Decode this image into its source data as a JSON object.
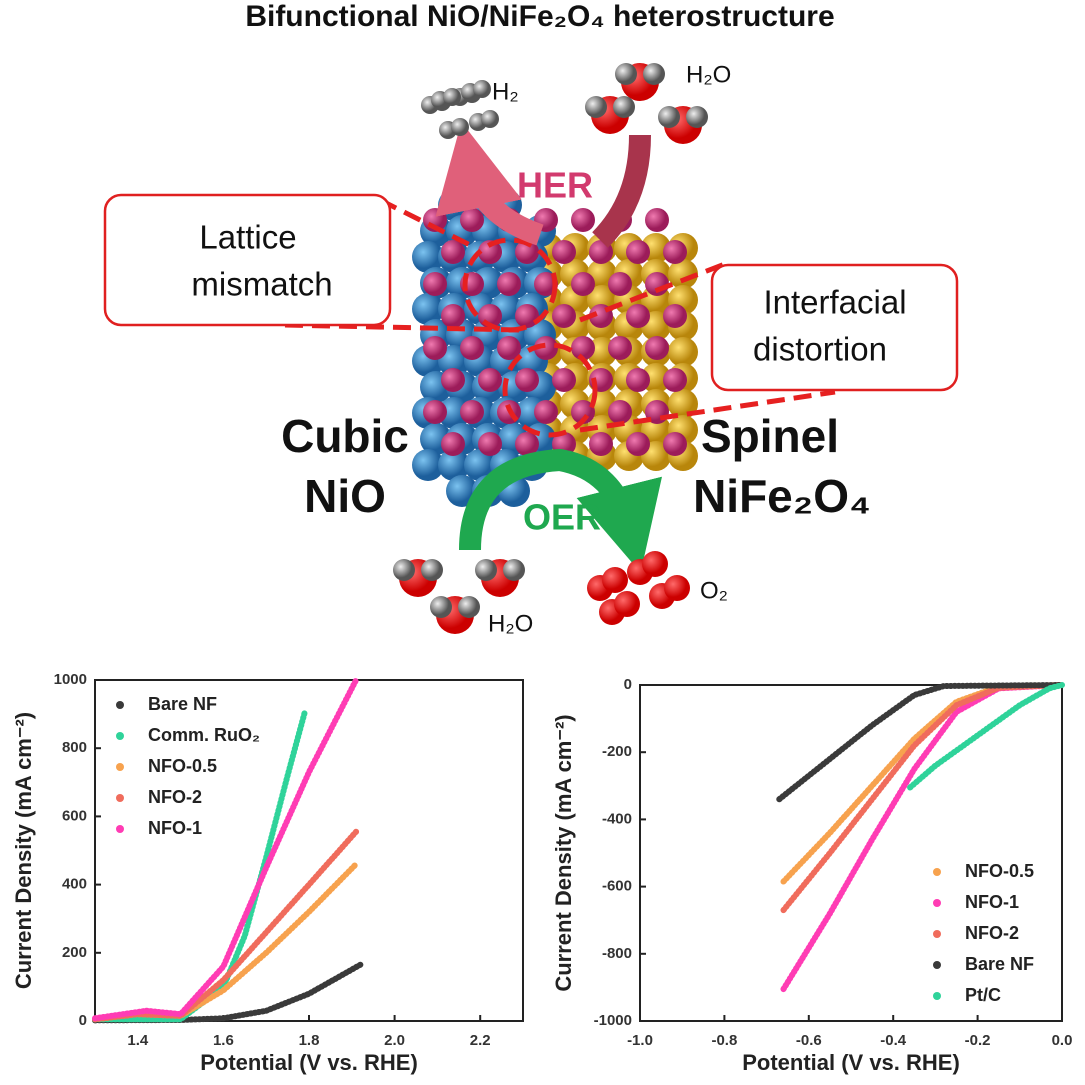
{
  "diagram": {
    "title": "Bifunctional NiO/NiFe₂O₄ heterostructure",
    "her": "HER",
    "oer": "OER",
    "lattice_mismatch": [
      "Lattice",
      "mismatch"
    ],
    "interfacial_distortion": [
      "Interfacial",
      "distortion"
    ],
    "cubic_nio": [
      "Cubic",
      "NiO"
    ],
    "spinel_nife2o4": [
      "Spinel",
      "NiFe₂O₄"
    ],
    "molecules": [
      "H₂",
      "H₂O",
      "H₂O",
      "O₂"
    ]
  },
  "chart_data": [
    {
      "type": "line",
      "xlabel": "Potential (V vs. RHE)",
      "ylabel": "Current Density (mA cm⁻²)",
      "xlim": [
        1.3,
        2.3
      ],
      "xticks": [
        1.4,
        1.6,
        1.8,
        {
          "value": 2,
          "label": "2.0"
        },
        2.2
      ],
      "ylim": [
        0,
        1000
      ],
      "yticks": [
        0,
        200,
        400,
        600,
        800,
        1000
      ],
      "legend": "upper left",
      "series": [
        {
          "name": "Bare NF",
          "color": "#3a3a3a",
          "x": [
            1.3,
            1.5,
            1.6,
            1.7,
            1.8,
            1.92
          ],
          "values": [
            2,
            3,
            8,
            30,
            80,
            165
          ]
        },
        {
          "name": "Comm. RuO₂",
          "color": "#2fd39a",
          "x": [
            1.3,
            1.5,
            1.6,
            1.65,
            1.7,
            1.75,
            1.79
          ],
          "values": [
            5,
            5,
            100,
            250,
            480,
            720,
            905
          ]
        },
        {
          "name": "NFO-0.5",
          "color": "#f7a24e",
          "x": [
            1.3,
            1.4,
            1.5,
            1.6,
            1.7,
            1.8,
            1.91
          ],
          "values": [
            5,
            20,
            15,
            90,
            200,
            320,
            460
          ]
        },
        {
          "name": "NFO-2",
          "color": "#f06c5c",
          "x": [
            1.3,
            1.4,
            1.5,
            1.6,
            1.7,
            1.8,
            1.91
          ],
          "values": [
            5,
            20,
            15,
            120,
            260,
            400,
            555
          ]
        },
        {
          "name": "NFO-1",
          "color": "#ff3cb4",
          "x": [
            1.3,
            1.42,
            1.5,
            1.6,
            1.7,
            1.8,
            1.91
          ],
          "values": [
            8,
            30,
            20,
            160,
            450,
            730,
            1000
          ]
        }
      ]
    },
    {
      "type": "line",
      "xlabel": "Potential (V vs. RHE)",
      "ylabel": "Current Density (mA cm⁻²)",
      "xlim": [
        -1,
        0
      ],
      "xticks": [
        {
          "value": -1,
          "label": "-1.0"
        },
        -0.8,
        -0.6,
        -0.4,
        -0.2,
        {
          "value": 0,
          "label": "0.0"
        }
      ],
      "ylim": [
        -1000,
        0
      ],
      "yticks": [
        -1000,
        -800,
        -600,
        -400,
        -200,
        0
      ],
      "legend": "lower right",
      "series": [
        {
          "name": "NFO-0.5",
          "color": "#f7a24e",
          "x": [
            -0.66,
            -0.55,
            -0.45,
            -0.35,
            -0.25,
            -0.15,
            0
          ],
          "values": [
            -585,
            -440,
            -300,
            -160,
            -50,
            -5,
            0
          ]
        },
        {
          "name": "NFO-1",
          "color": "#ff3cb4",
          "x": [
            -0.66,
            -0.55,
            -0.45,
            -0.35,
            -0.25,
            -0.15,
            0
          ],
          "values": [
            -905,
            -680,
            -460,
            -250,
            -80,
            -10,
            0
          ]
        },
        {
          "name": "NFO-2",
          "color": "#f06c5c",
          "x": [
            -0.66,
            -0.55,
            -0.45,
            -0.35,
            -0.25,
            -0.15,
            0
          ],
          "values": [
            -670,
            -500,
            -340,
            -180,
            -60,
            -8,
            0
          ]
        },
        {
          "name": "Bare NF",
          "color": "#3a3a3a",
          "x": [
            -0.67,
            -0.55,
            -0.45,
            -0.35,
            -0.28,
            0
          ],
          "values": [
            -340,
            -220,
            -120,
            -30,
            -3,
            0
          ]
        },
        {
          "name": "Pt/C",
          "color": "#2fd39a",
          "x": [
            -0.36,
            -0.3,
            -0.2,
            -0.1,
            -0.03,
            0
          ],
          "values": [
            -305,
            -240,
            -150,
            -60,
            -10,
            0
          ]
        }
      ]
    }
  ]
}
